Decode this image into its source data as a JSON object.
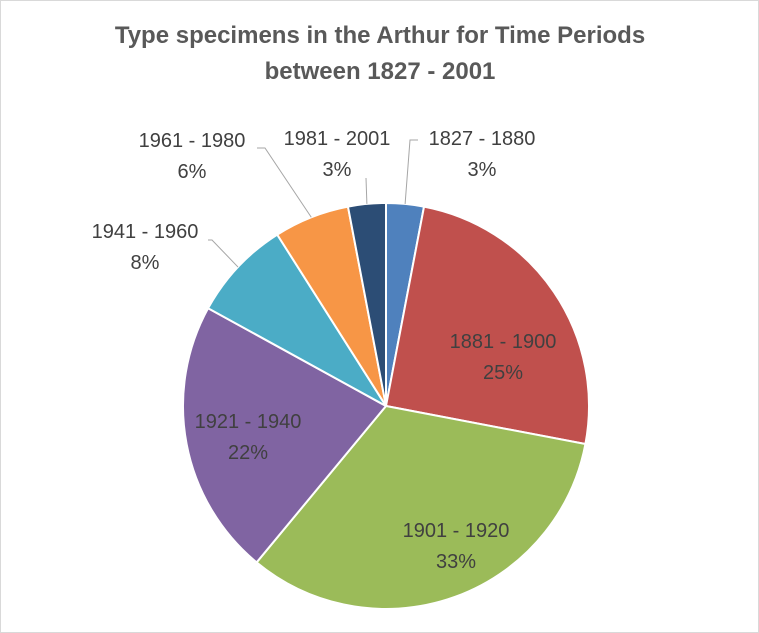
{
  "chart_data": {
    "type": "pie",
    "title": "Type specimens in the Arthur for Time Periods between 1827 - 2001",
    "categories": [
      "1827 - 1880",
      "1881 - 1900",
      "1901 - 1920",
      "1921 - 1940",
      "1941 - 1960",
      "1961 - 1980",
      "1981 - 2001"
    ],
    "values": [
      3,
      25,
      33,
      22,
      8,
      6,
      3
    ],
    "value_labels": [
      "3%",
      "25%",
      "33%",
      "22%",
      "8%",
      "6%",
      "3%"
    ],
    "colors": [
      "#4f81bd",
      "#c0504d",
      "#9bbb59",
      "#8064a2",
      "#4bacc6",
      "#f79646",
      "#2c4d75"
    ]
  }
}
